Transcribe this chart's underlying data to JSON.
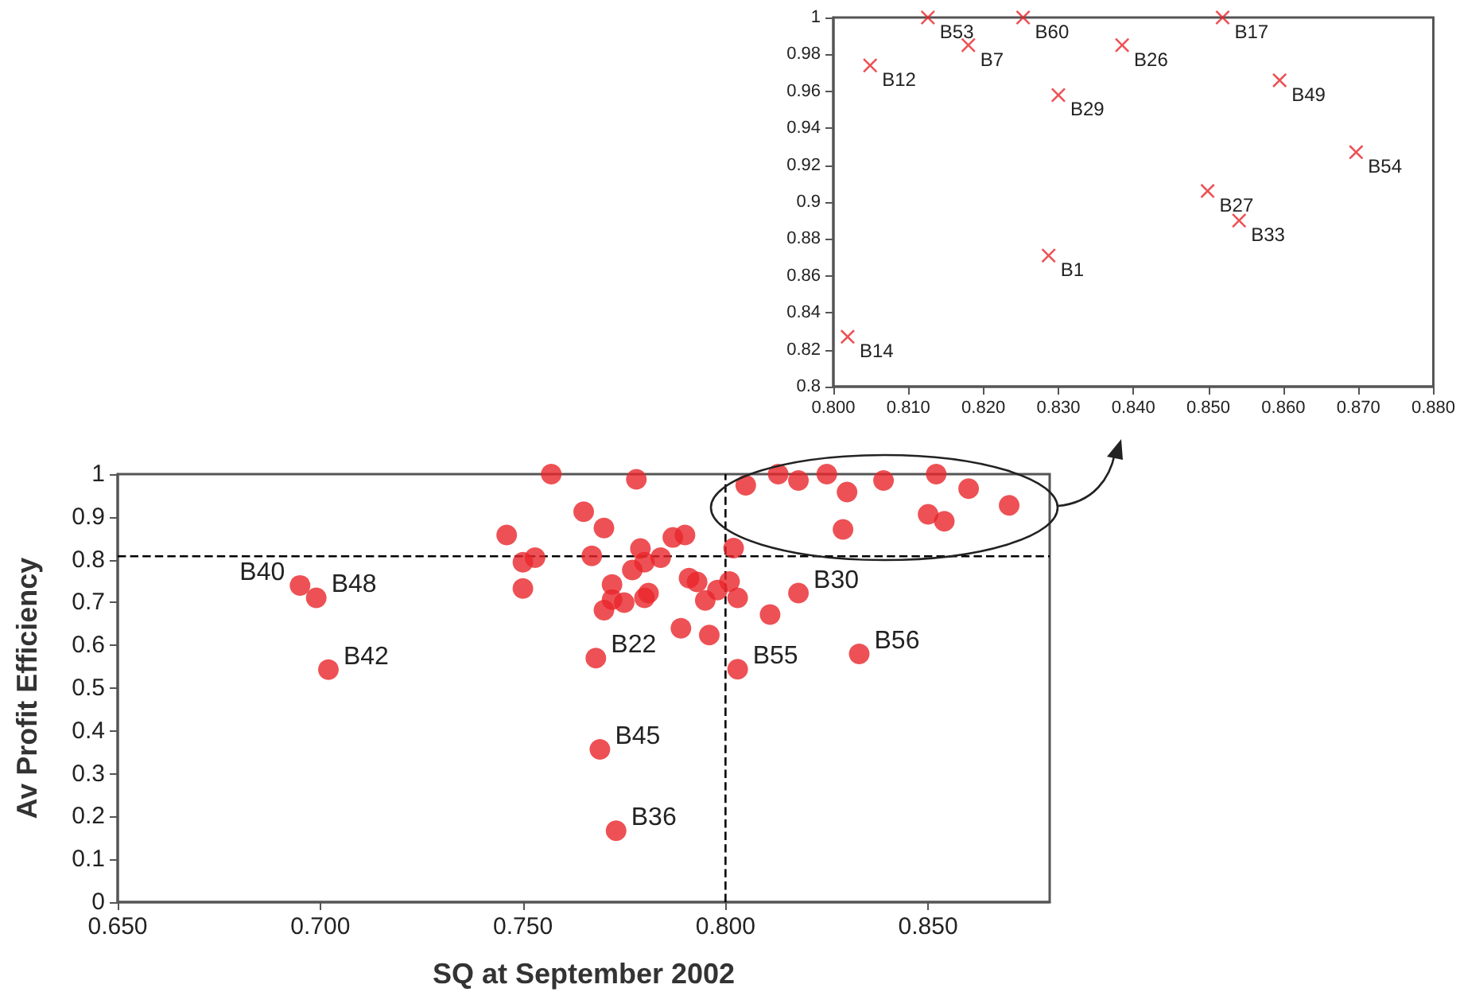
{
  "chart_data": [
    {
      "type": "scatter",
      "xlabel": "SQ at September 2002",
      "ylabel": "Av Profit Efficiency",
      "xlim": [
        0.65,
        0.88
      ],
      "xticks": [
        {
          "value": 0.65,
          "label": "0.650"
        },
        {
          "value": 0.7,
          "label": "0.700"
        },
        {
          "value": 0.75,
          "label": "0.750"
        },
        {
          "value": 0.8,
          "label": "0.800"
        },
        {
          "value": 0.85,
          "label": "0.850"
        }
      ],
      "ylim": [
        0,
        1
      ],
      "yticks": [
        0,
        0.1,
        0.2,
        0.3,
        0.4,
        0.5,
        0.6,
        0.7,
        0.8,
        0.9,
        1
      ],
      "marker": "circle",
      "grid": false,
      "series": [
        {
          "color": "#e8262b",
          "x": [
            0.695,
            0.699,
            0.702,
            0.757,
            0.778,
            0.765,
            0.77,
            0.746,
            0.75,
            0.753,
            0.767,
            0.75,
            0.779,
            0.78,
            0.784,
            0.777,
            0.787,
            0.79,
            0.772,
            0.772,
            0.77,
            0.775,
            0.78,
            0.781,
            0.791,
            0.793,
            0.795,
            0.798,
            0.789,
            0.796,
            0.768,
            0.769,
            0.773,
            0.801,
            0.803,
            0.811,
            0.818,
            0.833,
            0.803,
            0.813,
            0.825,
            0.852,
            0.818,
            0.839,
            0.805,
            0.83,
            0.86,
            0.87,
            0.85,
            0.854,
            0.829,
            0.802
          ],
          "values": [
            0.74,
            0.711,
            0.543,
            1.0,
            0.988,
            0.912,
            0.874,
            0.858,
            0.794,
            0.805,
            0.809,
            0.733,
            0.826,
            0.794,
            0.805,
            0.776,
            0.852,
            0.858,
            0.742,
            0.707,
            0.682,
            0.7,
            0.711,
            0.722,
            0.757,
            0.748,
            0.705,
            0.729,
            0.64,
            0.624,
            0.57,
            0.357,
            0.167,
            0.749,
            0.711,
            0.672,
            0.722,
            0.58,
            0.544,
            1.0,
            1.0,
            1.0,
            0.985,
            0.985,
            0.974,
            0.958,
            0.966,
            0.927,
            0.906,
            0.89,
            0.871,
            0.827
          ]
        }
      ],
      "ref_lines": [
        {
          "axis": "x",
          "value": 0.8,
          "color": "#000000",
          "line_style": "dashed"
        },
        {
          "axis": "y",
          "value": 0.808,
          "color": "#000000",
          "line_style": "dashed"
        }
      ],
      "annotations": [
        {
          "text": "B40",
          "x": 0.695,
          "y": 0.74
        },
        {
          "text": "B48",
          "x": 0.699,
          "y": 0.711
        },
        {
          "text": "B42",
          "x": 0.702,
          "y": 0.543
        },
        {
          "text": "B22",
          "x": 0.768,
          "y": 0.57
        },
        {
          "text": "B45",
          "x": 0.769,
          "y": 0.357
        },
        {
          "text": "B36",
          "x": 0.773,
          "y": 0.167
        },
        {
          "text": "B55",
          "x": 0.803,
          "y": 0.544
        },
        {
          "text": "B30",
          "x": 0.818,
          "y": 0.722
        },
        {
          "text": "B56",
          "x": 0.833,
          "y": 0.58
        }
      ]
    },
    {
      "type": "scatter",
      "xlim": [
        0.8,
        0.88
      ],
      "xticks": [
        {
          "value": 0.8,
          "label": "0.800"
        },
        {
          "value": 0.81,
          "label": "0.810"
        },
        {
          "value": 0.82,
          "label": "0.820"
        },
        {
          "value": 0.83,
          "label": "0.830"
        },
        {
          "value": 0.84,
          "label": "0.840"
        },
        {
          "value": 0.85,
          "label": "0.850"
        },
        {
          "value": 0.86,
          "label": "0.860"
        },
        {
          "value": 0.87,
          "label": "0.870"
        },
        {
          "value": 0.88,
          "label": "0.880"
        }
      ],
      "ylim": [
        0.8,
        1
      ],
      "yticks": [
        0.8,
        0.82,
        0.84,
        0.86,
        0.88,
        0.9,
        0.92,
        0.94,
        0.96,
        0.98,
        1
      ],
      "marker": "cross",
      "grid": false,
      "series": [
        {
          "color": "#e8262b",
          "x": [
            0.8126,
            0.8253,
            0.8519,
            0.818,
            0.8385,
            0.8049,
            0.83,
            0.8595,
            0.8697,
            0.8499,
            0.8541,
            0.8287,
            0.8019
          ],
          "values": [
            1.0,
            1.0,
            1.0,
            0.985,
            0.985,
            0.974,
            0.958,
            0.966,
            0.927,
            0.906,
            0.89,
            0.871,
            0.827
          ]
        }
      ],
      "annotations": [
        {
          "text": "B53",
          "x": 0.8126,
          "y": 1.0
        },
        {
          "text": "B60",
          "x": 0.8253,
          "y": 1.0
        },
        {
          "text": "B17",
          "x": 0.8519,
          "y": 1.0
        },
        {
          "text": "B7",
          "x": 0.818,
          "y": 0.985
        },
        {
          "text": "B26",
          "x": 0.8385,
          "y": 0.985
        },
        {
          "text": "B12",
          "x": 0.8049,
          "y": 0.974
        },
        {
          "text": "B29",
          "x": 0.83,
          "y": 0.958
        },
        {
          "text": "B49",
          "x": 0.8595,
          "y": 0.966
        },
        {
          "text": "B54",
          "x": 0.8697,
          "y": 0.927
        },
        {
          "text": "B27",
          "x": 0.8499,
          "y": 0.906
        },
        {
          "text": "B33",
          "x": 0.8541,
          "y": 0.89
        },
        {
          "text": "B1",
          "x": 0.8287,
          "y": 0.871
        },
        {
          "text": "B14",
          "x": 0.8019,
          "y": 0.827
        }
      ]
    }
  ]
}
